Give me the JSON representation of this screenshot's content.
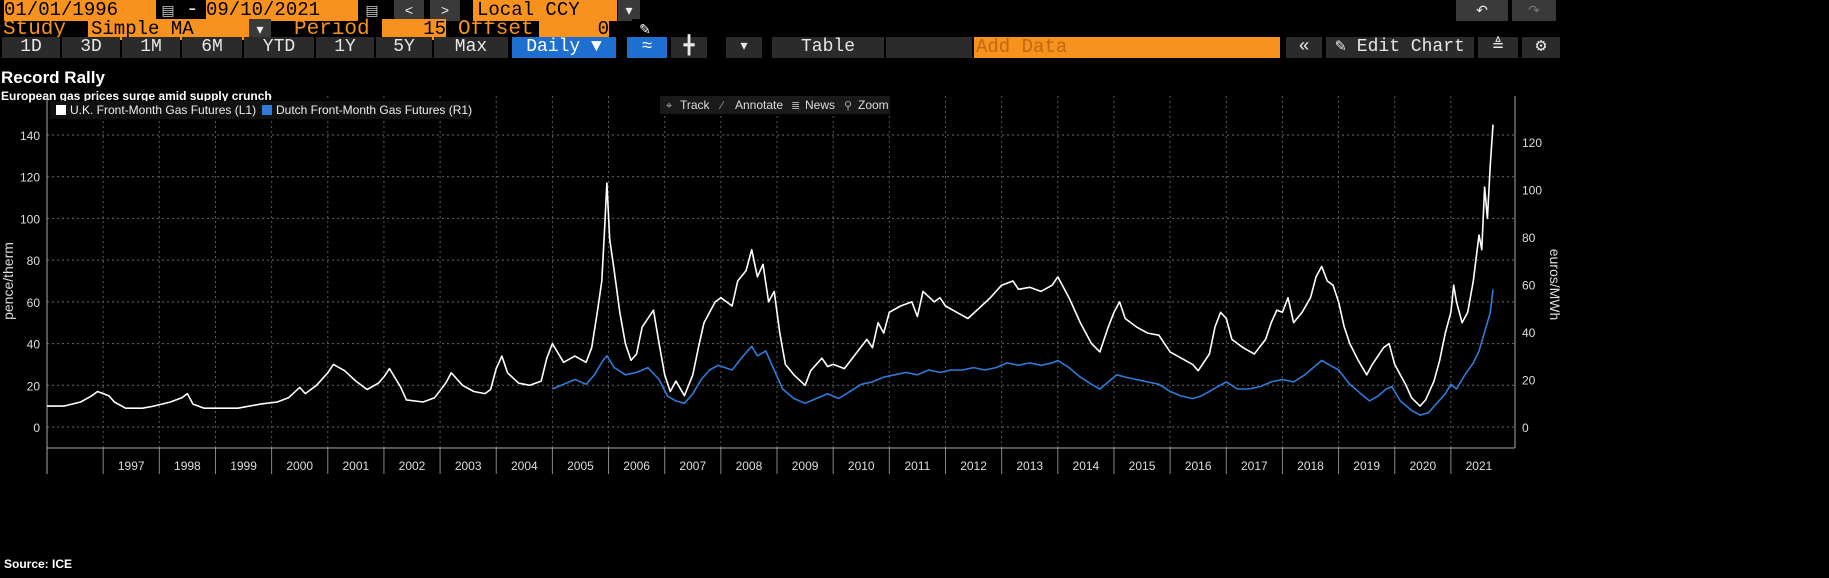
{
  "toolbar": {
    "start_date": "01/01/1996",
    "dash": "-",
    "end_date": "09/10/2021",
    "prev": "<",
    "next": ">",
    "currency": "Local CCY",
    "study_label": "Study",
    "study_value": "Simple MA",
    "period_label": "Period",
    "period_value": "15",
    "offset_label": "Offset",
    "offset_value": "0",
    "ranges": [
      "1D",
      "3D",
      "1M",
      "6M",
      "YTD",
      "1Y",
      "5Y",
      "Max"
    ],
    "frequency": "Daily",
    "table_label": "Table",
    "add_data_placeholder": "Add Data",
    "edit_chart_label": "Edit Chart"
  },
  "chart_tools": {
    "track": "Track",
    "annotate": "Annotate",
    "news": "News",
    "zoom": "Zoom"
  },
  "colors": {
    "uk_series": "#ffffff",
    "dutch_series": "#2f7bd8",
    "toolbar_orange": "#f7921e",
    "blue_button": "#1f6fd1"
  },
  "chart_data": {
    "type": "line",
    "title": "Record Rally",
    "subtitle": "European gas prices surge amid supply crunch",
    "source": "Source: ICE",
    "ylabel_left": "pence/therm",
    "ylabel_right": "euros/MWh",
    "ylim_left": [
      0,
      150
    ],
    "ylim_right": [
      0,
      135
    ],
    "yticks_left": [
      0,
      20,
      40,
      60,
      80,
      100,
      120,
      140
    ],
    "yticks_right": [
      0,
      20,
      40,
      60,
      80,
      100,
      120
    ],
    "xlim": [
      1996.0,
      2021.75
    ],
    "xtick_labels": [
      "1997",
      "1998",
      "1999",
      "2000",
      "2001",
      "2002",
      "2003",
      "2004",
      "2005",
      "2006",
      "2007",
      "2008",
      "2009",
      "2010",
      "2011",
      "2012",
      "2013",
      "2014",
      "2015",
      "2016",
      "2017",
      "2018",
      "2019",
      "2020",
      "2021"
    ],
    "grid": true,
    "legend_position": "top-left",
    "series": [
      {
        "name": "U.K. Front-Month Gas Futures (L1)",
        "axis": "left",
        "points": [
          [
            1996.0,
            10
          ],
          [
            1996.3,
            10
          ],
          [
            1996.6,
            12
          ],
          [
            1996.8,
            15
          ],
          [
            1996.9,
            17
          ],
          [
            1997.1,
            15
          ],
          [
            1997.2,
            12
          ],
          [
            1997.4,
            9
          ],
          [
            1997.7,
            9
          ],
          [
            1997.9,
            10
          ],
          [
            1998.2,
            12
          ],
          [
            1998.4,
            14
          ],
          [
            1998.5,
            16
          ],
          [
            1998.6,
            11
          ],
          [
            1998.8,
            9
          ],
          [
            1999.1,
            9
          ],
          [
            1999.4,
            9
          ],
          [
            1999.8,
            11
          ],
          [
            2000.1,
            12
          ],
          [
            2000.3,
            14
          ],
          [
            2000.5,
            19
          ],
          [
            2000.6,
            16
          ],
          [
            2000.8,
            20
          ],
          [
            2001.0,
            26
          ],
          [
            2001.1,
            30
          ],
          [
            2001.3,
            27
          ],
          [
            2001.5,
            22
          ],
          [
            2001.7,
            18
          ],
          [
            2001.9,
            21
          ],
          [
            2002.0,
            24
          ],
          [
            2002.1,
            28
          ],
          [
            2002.3,
            19
          ],
          [
            2002.4,
            13
          ],
          [
            2002.7,
            12
          ],
          [
            2002.9,
            14
          ],
          [
            2003.1,
            21
          ],
          [
            2003.2,
            26
          ],
          [
            2003.4,
            20
          ],
          [
            2003.6,
            17
          ],
          [
            2003.8,
            16
          ],
          [
            2003.9,
            18
          ],
          [
            2004.0,
            28
          ],
          [
            2004.1,
            34
          ],
          [
            2004.2,
            26
          ],
          [
            2004.4,
            21
          ],
          [
            2004.6,
            20
          ],
          [
            2004.8,
            22
          ],
          [
            2004.9,
            33
          ],
          [
            2005.0,
            40
          ],
          [
            2005.2,
            31
          ],
          [
            2005.4,
            34
          ],
          [
            2005.6,
            31
          ],
          [
            2005.7,
            38
          ],
          [
            2005.8,
            55
          ],
          [
            2005.88,
            70
          ],
          [
            2005.93,
            95
          ],
          [
            2005.97,
            117
          ],
          [
            2006.02,
            90
          ],
          [
            2006.1,
            75
          ],
          [
            2006.2,
            55
          ],
          [
            2006.3,
            40
          ],
          [
            2006.4,
            32
          ],
          [
            2006.5,
            35
          ],
          [
            2006.6,
            48
          ],
          [
            2006.8,
            56
          ],
          [
            2006.9,
            40
          ],
          [
            2007.0,
            25
          ],
          [
            2007.1,
            17
          ],
          [
            2007.2,
            22
          ],
          [
            2007.35,
            15
          ],
          [
            2007.5,
            25
          ],
          [
            2007.6,
            38
          ],
          [
            2007.7,
            50
          ],
          [
            2007.8,
            55
          ],
          [
            2007.9,
            60
          ],
          [
            2008.0,
            62
          ],
          [
            2008.2,
            58
          ],
          [
            2008.3,
            70
          ],
          [
            2008.45,
            75
          ],
          [
            2008.55,
            85
          ],
          [
            2008.65,
            72
          ],
          [
            2008.75,
            78
          ],
          [
            2008.85,
            60
          ],
          [
            2008.95,
            65
          ],
          [
            2009.05,
            45
          ],
          [
            2009.15,
            30
          ],
          [
            2009.3,
            25
          ],
          [
            2009.5,
            20
          ],
          [
            2009.6,
            27
          ],
          [
            2009.8,
            33
          ],
          [
            2009.9,
            29
          ],
          [
            2010.0,
            30
          ],
          [
            2010.2,
            28
          ],
          [
            2010.4,
            35
          ],
          [
            2010.6,
            42
          ],
          [
            2010.7,
            38
          ],
          [
            2010.8,
            50
          ],
          [
            2010.9,
            45
          ],
          [
            2011.0,
            55
          ],
          [
            2011.2,
            58
          ],
          [
            2011.4,
            60
          ],
          [
            2011.5,
            53
          ],
          [
            2011.6,
            65
          ],
          [
            2011.8,
            60
          ],
          [
            2011.9,
            62
          ],
          [
            2012.0,
            58
          ],
          [
            2012.2,
            55
          ],
          [
            2012.4,
            52
          ],
          [
            2012.6,
            57
          ],
          [
            2012.8,
            62
          ],
          [
            2012.9,
            65
          ],
          [
            2013.0,
            68
          ],
          [
            2013.2,
            70
          ],
          [
            2013.3,
            66
          ],
          [
            2013.5,
            67
          ],
          [
            2013.7,
            65
          ],
          [
            2013.9,
            68
          ],
          [
            2014.0,
            72
          ],
          [
            2014.2,
            62
          ],
          [
            2014.4,
            50
          ],
          [
            2014.6,
            40
          ],
          [
            2014.75,
            36
          ],
          [
            2014.9,
            48
          ],
          [
            2015.0,
            55
          ],
          [
            2015.1,
            60
          ],
          [
            2015.2,
            52
          ],
          [
            2015.4,
            48
          ],
          [
            2015.6,
            45
          ],
          [
            2015.8,
            44
          ],
          [
            2015.9,
            40
          ],
          [
            2016.0,
            36
          ],
          [
            2016.2,
            33
          ],
          [
            2016.4,
            30
          ],
          [
            2016.5,
            27
          ],
          [
            2016.7,
            35
          ],
          [
            2016.8,
            48
          ],
          [
            2016.9,
            55
          ],
          [
            2017.0,
            52
          ],
          [
            2017.1,
            42
          ],
          [
            2017.3,
            38
          ],
          [
            2017.5,
            35
          ],
          [
            2017.7,
            42
          ],
          [
            2017.8,
            50
          ],
          [
            2017.9,
            56
          ],
          [
            2018.0,
            55
          ],
          [
            2018.1,
            62
          ],
          [
            2018.2,
            50
          ],
          [
            2018.35,
            55
          ],
          [
            2018.5,
            62
          ],
          [
            2018.6,
            72
          ],
          [
            2018.7,
            77
          ],
          [
            2018.8,
            70
          ],
          [
            2018.9,
            68
          ],
          [
            2019.0,
            60
          ],
          [
            2019.1,
            48
          ],
          [
            2019.2,
            40
          ],
          [
            2019.35,
            32
          ],
          [
            2019.5,
            25
          ],
          [
            2019.6,
            30
          ],
          [
            2019.8,
            38
          ],
          [
            2019.9,
            40
          ],
          [
            2020.0,
            30
          ],
          [
            2020.2,
            20
          ],
          [
            2020.3,
            14
          ],
          [
            2020.45,
            10
          ],
          [
            2020.55,
            13
          ],
          [
            2020.7,
            22
          ],
          [
            2020.8,
            32
          ],
          [
            2020.9,
            45
          ],
          [
            2021.0,
            55
          ],
          [
            2021.05,
            68
          ],
          [
            2021.1,
            60
          ],
          [
            2021.2,
            50
          ],
          [
            2021.3,
            55
          ],
          [
            2021.4,
            70
          ],
          [
            2021.5,
            92
          ],
          [
            2021.55,
            85
          ],
          [
            2021.6,
            115
          ],
          [
            2021.65,
            100
          ],
          [
            2021.7,
            125
          ],
          [
            2021.75,
            145
          ]
        ]
      },
      {
        "name": "Dutch Front-Month Gas Futures (R1)",
        "axis": "right",
        "points": [
          [
            2005.0,
            16
          ],
          [
            2005.2,
            18
          ],
          [
            2005.4,
            20
          ],
          [
            2005.6,
            18
          ],
          [
            2005.75,
            22
          ],
          [
            2005.9,
            28
          ],
          [
            2005.97,
            30
          ],
          [
            2006.1,
            25
          ],
          [
            2006.3,
            22
          ],
          [
            2006.5,
            23
          ],
          [
            2006.7,
            25
          ],
          [
            2006.9,
            20
          ],
          [
            2007.05,
            13
          ],
          [
            2007.2,
            11
          ],
          [
            2007.35,
            10
          ],
          [
            2007.5,
            14
          ],
          [
            2007.65,
            20
          ],
          [
            2007.8,
            24
          ],
          [
            2007.95,
            26
          ],
          [
            2008.2,
            24
          ],
          [
            2008.4,
            30
          ],
          [
            2008.55,
            34
          ],
          [
            2008.65,
            30
          ],
          [
            2008.8,
            32
          ],
          [
            2008.95,
            24
          ],
          [
            2009.1,
            16
          ],
          [
            2009.3,
            12
          ],
          [
            2009.5,
            10
          ],
          [
            2009.7,
            12
          ],
          [
            2009.9,
            14
          ],
          [
            2010.1,
            12
          ],
          [
            2010.3,
            15
          ],
          [
            2010.5,
            18
          ],
          [
            2010.7,
            19
          ],
          [
            2010.9,
            21
          ],
          [
            2011.1,
            22
          ],
          [
            2011.3,
            23
          ],
          [
            2011.5,
            22
          ],
          [
            2011.7,
            24
          ],
          [
            2011.9,
            23
          ],
          [
            2012.1,
            24
          ],
          [
            2012.3,
            24
          ],
          [
            2012.5,
            25
          ],
          [
            2012.7,
            24
          ],
          [
            2012.9,
            25
          ],
          [
            2013.1,
            27
          ],
          [
            2013.3,
            26
          ],
          [
            2013.5,
            27
          ],
          [
            2013.7,
            26
          ],
          [
            2013.9,
            27
          ],
          [
            2014.0,
            28
          ],
          [
            2014.2,
            25
          ],
          [
            2014.4,
            21
          ],
          [
            2014.6,
            18
          ],
          [
            2014.75,
            16
          ],
          [
            2014.9,
            19
          ],
          [
            2015.05,
            22
          ],
          [
            2015.2,
            21
          ],
          [
            2015.4,
            20
          ],
          [
            2015.6,
            19
          ],
          [
            2015.8,
            18
          ],
          [
            2016.0,
            15
          ],
          [
            2016.2,
            13
          ],
          [
            2016.4,
            12
          ],
          [
            2016.55,
            13
          ],
          [
            2016.7,
            15
          ],
          [
            2016.85,
            17
          ],
          [
            2017.0,
            19
          ],
          [
            2017.2,
            16
          ],
          [
            2017.4,
            16
          ],
          [
            2017.6,
            17
          ],
          [
            2017.8,
            19
          ],
          [
            2018.0,
            20
          ],
          [
            2018.2,
            19
          ],
          [
            2018.4,
            22
          ],
          [
            2018.55,
            25
          ],
          [
            2018.7,
            28
          ],
          [
            2018.85,
            26
          ],
          [
            2019.0,
            24
          ],
          [
            2019.2,
            18
          ],
          [
            2019.4,
            14
          ],
          [
            2019.55,
            11
          ],
          [
            2019.7,
            13
          ],
          [
            2019.85,
            16
          ],
          [
            2019.95,
            17
          ],
          [
            2020.1,
            11
          ],
          [
            2020.3,
            7
          ],
          [
            2020.45,
            5
          ],
          [
            2020.6,
            6
          ],
          [
            2020.75,
            10
          ],
          [
            2020.9,
            14
          ],
          [
            2021.0,
            18
          ],
          [
            2021.1,
            16
          ],
          [
            2021.25,
            22
          ],
          [
            2021.4,
            27
          ],
          [
            2021.5,
            32
          ],
          [
            2021.6,
            40
          ],
          [
            2021.7,
            48
          ],
          [
            2021.75,
            58
          ]
        ]
      }
    ]
  }
}
